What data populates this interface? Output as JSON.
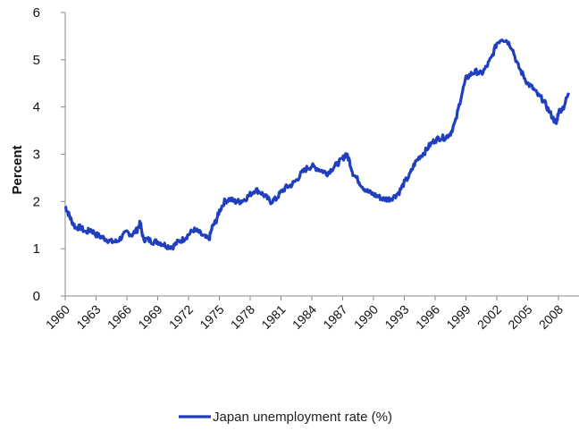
{
  "chart_data": {
    "type": "line",
    "title": "",
    "xlabel": "",
    "ylabel": "Percent",
    "ylim": [
      0,
      6
    ],
    "xlim": [
      1960,
      2010
    ],
    "y_ticks": [
      "0",
      "1",
      "2",
      "3",
      "4",
      "5",
      "6"
    ],
    "x_ticks": [
      "1960",
      "1963",
      "1966",
      "1969",
      "1972",
      "1975",
      "1978",
      "1981",
      "1984",
      "1987",
      "1990",
      "1993",
      "1996",
      "1999",
      "2002",
      "2005",
      "2008"
    ],
    "grid": false,
    "legend_position": "bottom",
    "series": [
      {
        "name": "Japan unemployment rate (%)",
        "color": "#1f3fbf",
        "points": [
          [
            1960.0,
            1.9
          ],
          [
            1960.3,
            1.75
          ],
          [
            1960.6,
            1.6
          ],
          [
            1961.0,
            1.45
          ],
          [
            1961.5,
            1.45
          ],
          [
            1962.0,
            1.35
          ],
          [
            1962.5,
            1.4
          ],
          [
            1963.0,
            1.3
          ],
          [
            1963.5,
            1.25
          ],
          [
            1964.0,
            1.2
          ],
          [
            1964.5,
            1.15
          ],
          [
            1965.0,
            1.15
          ],
          [
            1965.5,
            1.25
          ],
          [
            1966.0,
            1.35
          ],
          [
            1966.5,
            1.3
          ],
          [
            1967.0,
            1.4
          ],
          [
            1967.3,
            1.55
          ],
          [
            1967.6,
            1.2
          ],
          [
            1968.0,
            1.2
          ],
          [
            1968.5,
            1.15
          ],
          [
            1969.0,
            1.15
          ],
          [
            1969.5,
            1.1
          ],
          [
            1970.0,
            1.05
          ],
          [
            1970.5,
            1.05
          ],
          [
            1971.0,
            1.15
          ],
          [
            1971.5,
            1.2
          ],
          [
            1972.0,
            1.3
          ],
          [
            1972.5,
            1.4
          ],
          [
            1973.0,
            1.35
          ],
          [
            1973.5,
            1.25
          ],
          [
            1974.0,
            1.2
          ],
          [
            1974.3,
            1.45
          ],
          [
            1974.7,
            1.6
          ],
          [
            1975.0,
            1.8
          ],
          [
            1975.5,
            2.0
          ],
          [
            1976.0,
            2.05
          ],
          [
            1976.5,
            2.0
          ],
          [
            1977.0,
            2.0
          ],
          [
            1977.5,
            2.05
          ],
          [
            1978.0,
            2.15
          ],
          [
            1978.5,
            2.25
          ],
          [
            1979.0,
            2.2
          ],
          [
            1979.5,
            2.1
          ],
          [
            1980.0,
            2.0
          ],
          [
            1980.5,
            2.05
          ],
          [
            1981.0,
            2.2
          ],
          [
            1981.5,
            2.3
          ],
          [
            1982.0,
            2.35
          ],
          [
            1982.5,
            2.45
          ],
          [
            1983.0,
            2.6
          ],
          [
            1983.5,
            2.7
          ],
          [
            1984.0,
            2.75
          ],
          [
            1984.5,
            2.7
          ],
          [
            1985.0,
            2.65
          ],
          [
            1985.5,
            2.6
          ],
          [
            1986.0,
            2.7
          ],
          [
            1986.5,
            2.8
          ],
          [
            1987.0,
            2.9
          ],
          [
            1987.3,
            3.0
          ],
          [
            1987.6,
            2.9
          ],
          [
            1988.0,
            2.6
          ],
          [
            1988.5,
            2.45
          ],
          [
            1989.0,
            2.3
          ],
          [
            1989.5,
            2.2
          ],
          [
            1990.0,
            2.15
          ],
          [
            1990.5,
            2.1
          ],
          [
            1991.0,
            2.05
          ],
          [
            1991.5,
            2.05
          ],
          [
            1992.0,
            2.1
          ],
          [
            1992.5,
            2.2
          ],
          [
            1993.0,
            2.4
          ],
          [
            1993.5,
            2.55
          ],
          [
            1994.0,
            2.8
          ],
          [
            1994.5,
            2.95
          ],
          [
            1995.0,
            3.05
          ],
          [
            1995.5,
            3.2
          ],
          [
            1996.0,
            3.3
          ],
          [
            1996.5,
            3.35
          ],
          [
            1997.0,
            3.35
          ],
          [
            1997.5,
            3.45
          ],
          [
            1998.0,
            3.7
          ],
          [
            1998.5,
            4.2
          ],
          [
            1999.0,
            4.6
          ],
          [
            1999.5,
            4.7
          ],
          [
            2000.0,
            4.75
          ],
          [
            2000.5,
            4.7
          ],
          [
            2001.0,
            4.85
          ],
          [
            2001.5,
            5.05
          ],
          [
            2002.0,
            5.35
          ],
          [
            2002.5,
            5.45
          ],
          [
            2003.0,
            5.4
          ],
          [
            2003.5,
            5.25
          ],
          [
            2004.0,
            4.9
          ],
          [
            2004.5,
            4.7
          ],
          [
            2005.0,
            4.5
          ],
          [
            2005.5,
            4.4
          ],
          [
            2006.0,
            4.25
          ],
          [
            2006.5,
            4.15
          ],
          [
            2007.0,
            3.95
          ],
          [
            2007.5,
            3.75
          ],
          [
            2007.8,
            3.65
          ],
          [
            2008.0,
            3.9
          ],
          [
            2008.5,
            4.0
          ],
          [
            2009.0,
            4.3
          ]
        ]
      }
    ]
  }
}
